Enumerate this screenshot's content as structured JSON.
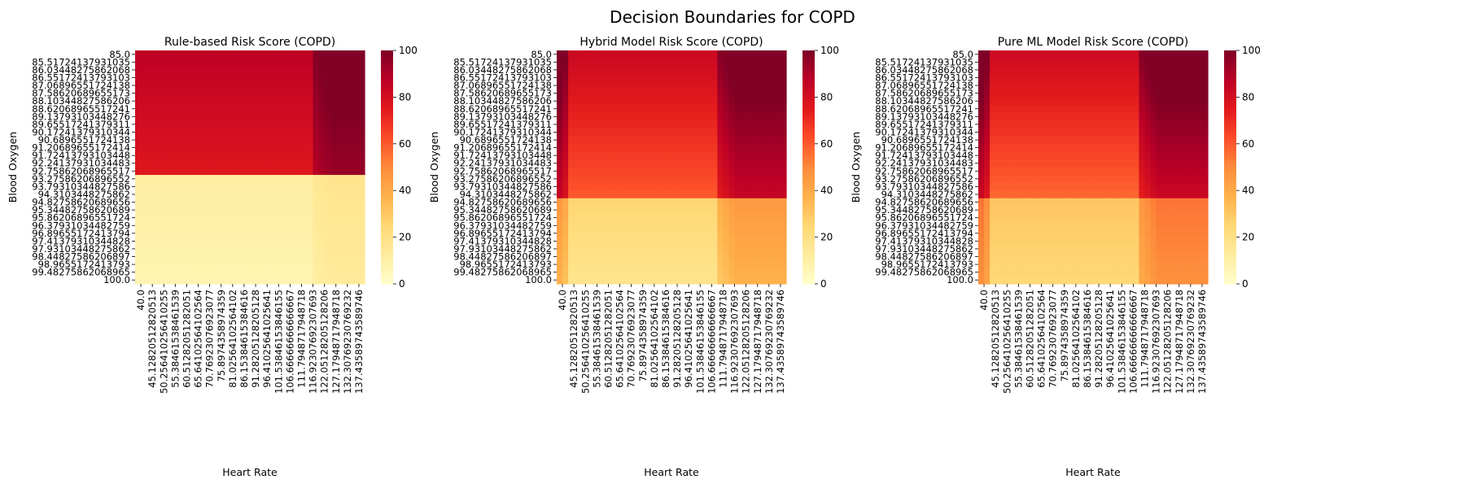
{
  "figure": {
    "suptitle": "Decision Boundaries for COPD"
  },
  "chart_data": [
    {
      "type": "heatmap",
      "title": "Rule-based Risk Score (COPD)",
      "xlabel": "Heart Rate",
      "ylabel": "Blood Oxygen",
      "colormap": "YlOrRd",
      "colorbar_ticks": [
        0,
        20,
        40,
        60,
        80,
        100
      ],
      "vlim": [
        0,
        100
      ],
      "rows": 30,
      "cols": 40,
      "x_ticks": [
        "40.0",
        "45.12820512820513",
        "50.256410256410255",
        "55.38461538461539",
        "60.51282051282051",
        "65.64102564102564",
        "70.76923076923077",
        "75.8974358974359",
        "81.02564102564102",
        "86.15384615384616",
        "91.28205128205128",
        "96.41025641025641",
        "101.53846153846155",
        "106.66666666666667",
        "111.7948717948718",
        "116.92307692307693",
        "122.05128205128206",
        "127.17948717948718",
        "132.30769230769232",
        "137.43589743589746"
      ],
      "y_ticks": [
        "85.0",
        "85.51724137931035",
        "86.03448275862068",
        "86.55172413793103",
        "87.06896551724138",
        "87.58620689655173",
        "88.10344827586206",
        "88.62068965517241",
        "89.13793103448276",
        "89.65517241379311",
        "90.17241379310344",
        "90.6896551724138",
        "91.20689655172414",
        "91.72413793103448",
        "92.24137931034483",
        "92.75862068965517",
        "93.27586206896552",
        "93.79310344827586",
        "94.3103448275862",
        "94.82758620689656",
        "95.34482758620689",
        "95.86206896551724",
        "96.37931034482759",
        "96.89655172413794",
        "97.41379310344828",
        "97.93103448275862",
        "98.44827586206897",
        "98.9655172413793",
        "99.48275862068965",
        "100.0"
      ],
      "model": {
        "split_row": 16,
        "hi_base": 82,
        "lo_base": 10,
        "hi_gain": 18,
        "lo_gain": 3,
        "hr_left": 40,
        "hr_right": 115,
        "grad_hi": 10,
        "grad_lo": 4
      }
    },
    {
      "type": "heatmap",
      "title": "Hybrid Model Risk Score (COPD)",
      "xlabel": "Heart Rate",
      "ylabel": "Blood Oxygen",
      "colormap": "YlOrRd",
      "colorbar_ticks": [
        0,
        20,
        40,
        60,
        80,
        100
      ],
      "vlim": [
        0,
        100
      ],
      "rows": 30,
      "cols": 40,
      "x_ticks": [
        "40.0",
        "45.12820512820513",
        "50.256410256410255",
        "55.38461538461539",
        "60.51282051282051",
        "65.64102564102564",
        "70.76923076923077",
        "75.8974358974359",
        "81.02564102564102",
        "86.15384615384616",
        "91.28205128205128",
        "96.41025641025641",
        "101.53846153846155",
        "106.66666666666667",
        "111.7948717948718",
        "116.92307692307693",
        "122.05128205128206",
        "127.17948717948718",
        "132.30769230769232",
        "137.43589743589746"
      ],
      "y_ticks": [
        "85.0",
        "85.51724137931035",
        "86.03448275862068",
        "86.55172413793103",
        "87.06896551724138",
        "87.58620689655173",
        "88.10344827586206",
        "88.62068965517241",
        "89.13793103448276",
        "89.65517241379311",
        "90.17241379310344",
        "90.6896551724138",
        "91.20689655172414",
        "91.72413793103448",
        "92.24137931034483",
        "92.75862068965517",
        "93.27586206896552",
        "93.79310344827586",
        "94.3103448275862",
        "94.82758620689656",
        "95.34482758620689",
        "95.86206896551724",
        "96.37931034482759",
        "96.89655172413794",
        "97.41379310344828",
        "97.93103448275862",
        "98.44827586206897",
        "98.9655172413793",
        "99.48275862068965",
        "100.0"
      ],
      "model": {
        "split_row": 19,
        "hi_base": 72,
        "lo_base": 22,
        "hi_gain": 24,
        "lo_gain": 10,
        "hr_left": 44,
        "hr_right": 108,
        "grad_hi": 22,
        "grad_lo": 8
      }
    },
    {
      "type": "heatmap",
      "title": "Pure ML Model Risk Score (COPD)",
      "xlabel": "Heart Rate",
      "ylabel": "Blood Oxygen",
      "colormap": "YlOrRd",
      "colorbar_ticks": [
        0,
        20,
        40,
        60,
        80,
        100
      ],
      "vlim": [
        0,
        100
      ],
      "rows": 30,
      "cols": 40,
      "x_ticks": [
        "40.0",
        "45.12820512820513",
        "50.256410256410255",
        "55.38461538461539",
        "60.51282051282051",
        "65.64102564102564",
        "70.76923076923077",
        "75.8974358974359",
        "81.02564102564102",
        "86.15384615384616",
        "91.28205128205128",
        "96.41025641025641",
        "101.53846153846155",
        "106.66666666666667",
        "111.7948717948718",
        "116.92307692307693",
        "122.05128205128206",
        "127.17948717948718",
        "132.30769230769232",
        "137.43589743589746"
      ],
      "y_ticks": [
        "85.0",
        "85.51724137931035",
        "86.03448275862068",
        "86.55172413793103",
        "87.06896551724138",
        "87.58620689655173",
        "88.10344827586206",
        "88.62068965517241",
        "89.13793103448276",
        "89.65517241379311",
        "90.17241379310344",
        "90.6896551724138",
        "91.20689655172414",
        "91.72413793103448",
        "92.24137931034483",
        "92.75862068965517",
        "93.27586206896552",
        "93.79310344827586",
        "94.3103448275862",
        "94.82758620689656",
        "95.34482758620689",
        "95.86206896551724",
        "96.37931034482759",
        "96.89655172413794",
        "97.41379310344828",
        "97.93103448275862",
        "98.44827586206897",
        "98.9655172413793",
        "99.48275862068965",
        "100.0"
      ],
      "model": {
        "split_row": 19,
        "hi_base": 70,
        "lo_base": 28,
        "hi_gain": 26,
        "lo_gain": 12,
        "hr_left": 44,
        "hr_right": 108,
        "grad_hi": 24,
        "grad_lo": 6
      }
    }
  ]
}
